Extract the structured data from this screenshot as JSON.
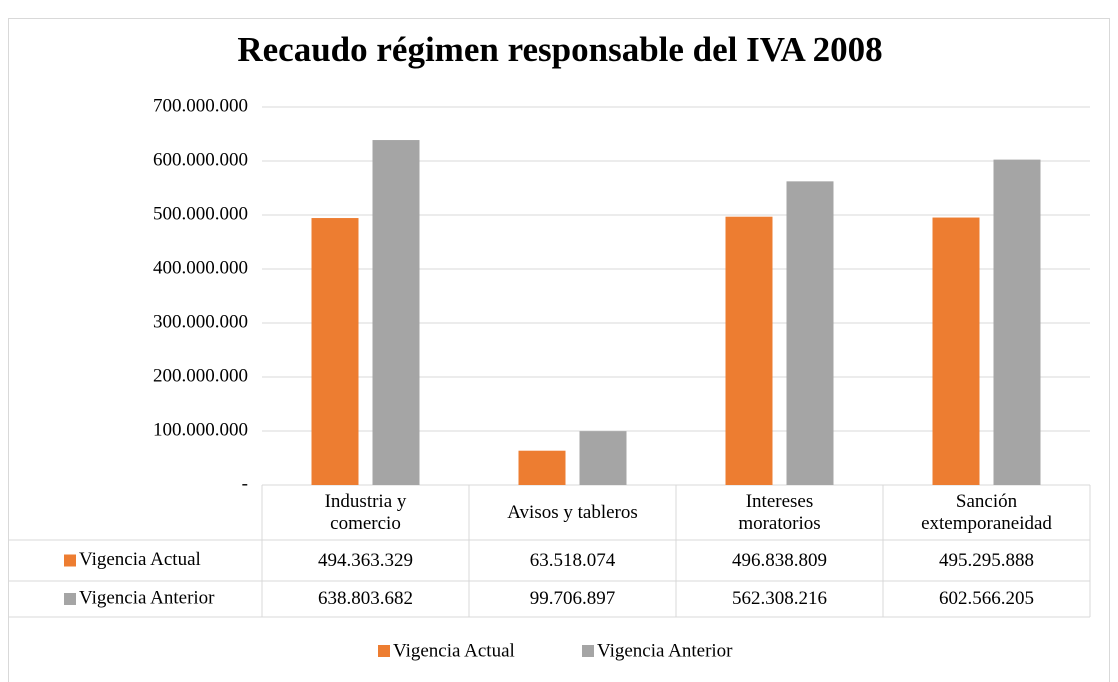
{
  "chart_data": {
    "type": "bar",
    "title": "Recaudo régimen responsable del IVA 2008",
    "categories": [
      "Industria y comercio",
      "Avisos y tableros",
      "Intereses moratorios",
      "Sanción extemporaneidad"
    ],
    "series": [
      {
        "name": "Vigencia Actual",
        "color": "#ed7d31",
        "values": [
          494363329,
          63518074,
          496838809,
          495295888
        ],
        "value_labels": [
          "494.363.329",
          "63.518.074",
          "496.838.809",
          "495.295.888"
        ]
      },
      {
        "name": "Vigencia Anterior",
        "color": "#a5a5a5",
        "values": [
          638803682,
          99706897,
          562308216,
          602566205
        ],
        "value_labels": [
          "638.803.682",
          "99.706.897",
          "562.308.216",
          "602.566.205"
        ]
      }
    ],
    "ylim": [
      0,
      700000000
    ],
    "yticks": [
      {
        "value": 0,
        "label": "-"
      },
      {
        "value": 100000000,
        "label": "100.000.000"
      },
      {
        "value": 200000000,
        "label": "200.000.000"
      },
      {
        "value": 300000000,
        "label": "300.000.000"
      },
      {
        "value": 400000000,
        "label": "400.000.000"
      },
      {
        "value": 500000000,
        "label": "500.000.000"
      },
      {
        "value": 600000000,
        "label": "600.000.000"
      },
      {
        "value": 700000000,
        "label": "700.000.000"
      }
    ],
    "grid": true,
    "legend": "bottom"
  }
}
